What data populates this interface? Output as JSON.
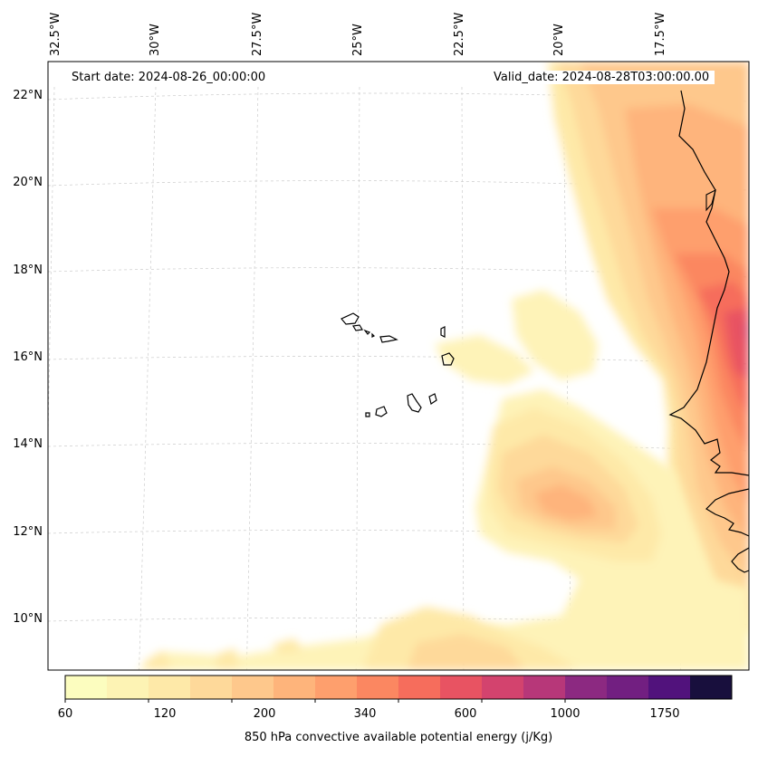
{
  "map": {
    "start_date_label": "Start date: 2024-08-26_00:00:00",
    "valid_date_label": "Valid_date: 2024-08-28T03:00:00.00",
    "longitude_labels": [
      "32.5°W",
      "30°W",
      "27.5°W",
      "25°W",
      "22.5°W",
      "20°W",
      "17.5°W"
    ],
    "latitude_labels": [
      "22°N",
      "20°N",
      "18°N",
      "16°N",
      "14°N",
      "12°N",
      "10°N"
    ],
    "features": [
      "Cape Verde islands",
      "West African coastline"
    ]
  },
  "colorbar": {
    "label": "850 hPa convective available potential energy (j/Kg)",
    "tick_labels": [
      "60",
      "120",
      "200",
      "340",
      "600",
      "1000",
      "1750"
    ],
    "colors": [
      "#fcfdbf",
      "#fdf3b4",
      "#fee9a8",
      "#fed99a",
      "#fec88c",
      "#feb47b",
      "#fe9f6d",
      "#fb8761",
      "#f66d5c",
      "#e85362",
      "#d3436e",
      "#b73779",
      "#8c2981",
      "#721f81",
      "#51127c",
      "#180f3d"
    ]
  }
}
